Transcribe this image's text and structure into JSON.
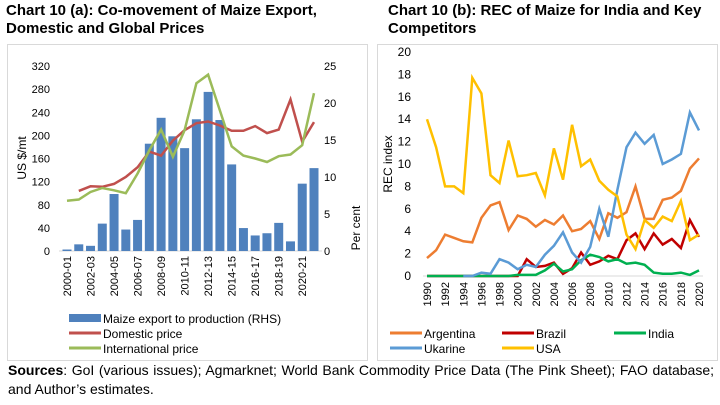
{
  "chart_data": [
    {
      "type": "bar+line",
      "title": "Chart 10 (a): Co-movement of Maize Export, Domestic and Global Prices",
      "ylabel": "US $/mt",
      "y2label": "Per cent",
      "ylim": [
        0,
        320
      ],
      "yticks": [
        0,
        40,
        80,
        120,
        160,
        200,
        240,
        280,
        320
      ],
      "y2lim": [
        0,
        25
      ],
      "y2ticks": [
        0,
        5,
        10,
        15,
        20,
        25
      ],
      "categories": [
        "2000-01",
        "2001-02",
        "2002-03",
        "2003-04",
        "2004-05",
        "2005-06",
        "2006-07",
        "2007-08",
        "2008-09",
        "2009-10",
        "2010-11",
        "2011-12",
        "2012-13",
        "2013-14",
        "2014-15",
        "2015-16",
        "2016-17",
        "2017-18",
        "2018-19",
        "2019-20",
        "2020-21",
        "2021-22"
      ],
      "tick_labels": [
        "2000-01",
        "2002-03",
        "2004-05",
        "2006-07",
        "2008-09",
        "2010-11",
        "2012-13",
        "2014-15",
        "2016-17",
        "2018-19",
        "2020-21"
      ],
      "legend": "bottom",
      "series": [
        {
          "name": "Maize export to production (RHS)",
          "type": "bar",
          "axis": "right",
          "color": "#4f81bd",
          "values": [
            0.2,
            0.9,
            0.7,
            3.7,
            7.7,
            2.9,
            4.2,
            14.5,
            18.0,
            15.5,
            13.9,
            17.8,
            21.5,
            17.7,
            11.7,
            3.1,
            2.1,
            2.4,
            3.8,
            1.3,
            9.1,
            11.2
          ]
        },
        {
          "name": "Domestic price",
          "type": "line",
          "axis": "left",
          "color": "#c0504d",
          "values": [
            null,
            104,
            112,
            111,
            116,
            128,
            145,
            172,
            165,
            191,
            209,
            221,
            224,
            217,
            208,
            208,
            216,
            204,
            210,
            262,
            189,
            223
          ]
        },
        {
          "name": "International price",
          "type": "line",
          "axis": "left",
          "color": "#9bbb59",
          "values": [
            87,
            89,
            102,
            109,
            105,
            100,
            134,
            174,
            210,
            163,
            209,
            290,
            305,
            243,
            181,
            165,
            160,
            154,
            164,
            167,
            183,
            273
          ]
        }
      ]
    },
    {
      "type": "line",
      "title": "Chart 10 (b): REC of Maize for India and Key Competitors",
      "ylabel": "REC index",
      "ylim": [
        0,
        20
      ],
      "yticks": [
        0,
        2,
        4,
        6,
        8,
        10,
        12,
        14,
        16,
        18,
        20
      ],
      "x": [
        1990,
        1991,
        1992,
        1993,
        1994,
        1995,
        1996,
        1997,
        1998,
        1999,
        2000,
        2001,
        2002,
        2003,
        2004,
        2005,
        2006,
        2007,
        2008,
        2009,
        2010,
        2011,
        2012,
        2013,
        2014,
        2015,
        2016,
        2017,
        2018,
        2019,
        2020
      ],
      "xticks": [
        1990,
        1992,
        1994,
        1996,
        1998,
        2000,
        2002,
        2004,
        2006,
        2008,
        2010,
        2012,
        2014,
        2016,
        2018,
        2020
      ],
      "legend": "bottom",
      "series": [
        {
          "name": "Argentina",
          "color": "#ed7d31",
          "values": [
            1.6,
            2.3,
            3.7,
            3.4,
            3.1,
            3.0,
            5.2,
            6.3,
            6.6,
            4.1,
            5.4,
            5.1,
            4.4,
            5.0,
            4.6,
            5.4,
            4.0,
            4.2,
            4.9,
            3.3,
            5.6,
            5.2,
            5.7,
            8.0,
            5.1,
            5.1,
            6.8,
            7.0,
            7.6,
            9.6,
            10.5
          ]
        },
        {
          "name": "Brazil",
          "color": "#c00000",
          "values": [
            0,
            0,
            0,
            0,
            0,
            0,
            0,
            0,
            0,
            0,
            0,
            1.5,
            0.8,
            0.9,
            1.2,
            0.2,
            0.7,
            2.1,
            1.0,
            1.3,
            1.8,
            1.5,
            3.2,
            3.8,
            2.4,
            3.8,
            2.8,
            3.3,
            2.5,
            5.0,
            3.5
          ]
        },
        {
          "name": "India",
          "color": "#00b050",
          "values": [
            0,
            0,
            0,
            0,
            0,
            0,
            0,
            0,
            0,
            0,
            0.1,
            0.1,
            0.1,
            0.5,
            1.1,
            0.4,
            0.6,
            1.4,
            1.9,
            1.7,
            1.3,
            1.5,
            1.1,
            1.2,
            1.0,
            0.3,
            0.2,
            0.2,
            0.3,
            0.1,
            0.5
          ]
        },
        {
          "name": "Ukarine",
          "color": "#5b9bd5",
          "values": [
            null,
            null,
            null,
            null,
            0,
            0,
            0.3,
            0.2,
            1.5,
            1.2,
            0.6,
            1.0,
            0.8,
            1.9,
            2.7,
            3.9,
            2.1,
            1.2,
            2.6,
            6.0,
            3.5,
            7.7,
            11.5,
            12.8,
            11.8,
            12.6,
            10.0,
            10.4,
            10.9,
            14.6,
            13.0
          ]
        },
        {
          "name": "USA",
          "color": "#ffc000",
          "values": [
            14.0,
            11.5,
            8.0,
            8.0,
            7.4,
            17.7,
            16.3,
            9.0,
            8.3,
            12.1,
            8.9,
            9.0,
            9.2,
            7.2,
            11.4,
            8.6,
            13.5,
            9.8,
            10.4,
            8.5,
            7.7,
            7.1,
            3.7,
            2.4,
            5.0,
            4.3,
            5.3,
            4.9,
            6.7,
            3.2,
            3.7
          ]
        }
      ]
    }
  ],
  "sources": {
    "label": "Sources",
    "text": ": GoI (various issues); Agmarknet; World Bank Commodity Price Data (The Pink Sheet); FAO database; and Author’s estimates."
  }
}
